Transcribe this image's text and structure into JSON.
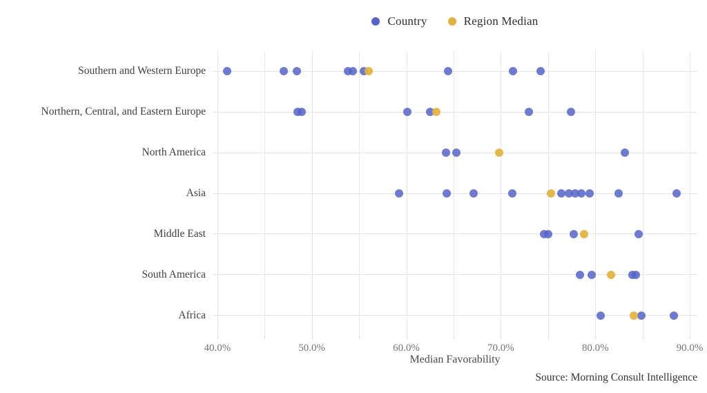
{
  "legend": {
    "items": [
      {
        "label": "Country",
        "color": "#5663c9"
      },
      {
        "label": "Region Median",
        "color": "#e2b33c"
      }
    ]
  },
  "source_note": "Source: Morning Consult Intelligence",
  "chart_data": {
    "type": "scatter",
    "subtype": "horizontal-dot-plot",
    "title": "",
    "xlabel": "Median Favorability",
    "ylabel": "",
    "xlim": [
      39.5,
      90.8
    ],
    "grid": "on",
    "gridline_step_pct": 5,
    "x_tick_values": [
      40,
      50,
      60,
      70,
      80,
      90
    ],
    "x_tick_labels": [
      "40.0%",
      "50.0%",
      "60.0%",
      "70.0%",
      "80.0%",
      "90.0%"
    ],
    "legend_position": "top-center",
    "colors": {
      "country": "#5663c9",
      "region_median": "#e2b33c",
      "gridline": "#e9e9e9",
      "row_line": "#e4e4e4",
      "tick_text": "#737373",
      "label_text": "#3e3e3e"
    },
    "categories": [
      "Southern and Western Europe",
      "Northern, Central, and Eastern Europe",
      "North America",
      "Asia",
      "Middle East",
      "South America",
      "Africa"
    ],
    "series": [
      {
        "name": "Southern and Western Europe",
        "countries": [
          41.0,
          47.0,
          48.4,
          53.8,
          54.3,
          55.5,
          64.4,
          71.3,
          74.2
        ],
        "region_median": 56.0
      },
      {
        "name": "Northern, Central, and Eastern Europe",
        "countries": [
          48.5,
          48.9,
          60.1,
          62.5,
          73.0,
          77.4
        ],
        "region_median": 63.2
      },
      {
        "name": "North America",
        "countries": [
          64.2,
          65.3,
          83.1
        ],
        "region_median": 69.8
      },
      {
        "name": "Asia",
        "countries": [
          59.2,
          64.3,
          67.1,
          71.2,
          76.4,
          77.2,
          77.9,
          78.5,
          79.4,
          82.5,
          88.6
        ],
        "region_median": 75.3
      },
      {
        "name": "Middle East",
        "countries": [
          74.6,
          75.0,
          77.7,
          84.6
        ],
        "region_median": 78.8
      },
      {
        "name": "South America",
        "countries": [
          78.4,
          79.6,
          83.9,
          84.3
        ],
        "region_median": 81.7
      },
      {
        "name": "Africa",
        "countries": [
          80.6,
          84.9,
          88.3
        ],
        "region_median": 84.1
      }
    ]
  }
}
